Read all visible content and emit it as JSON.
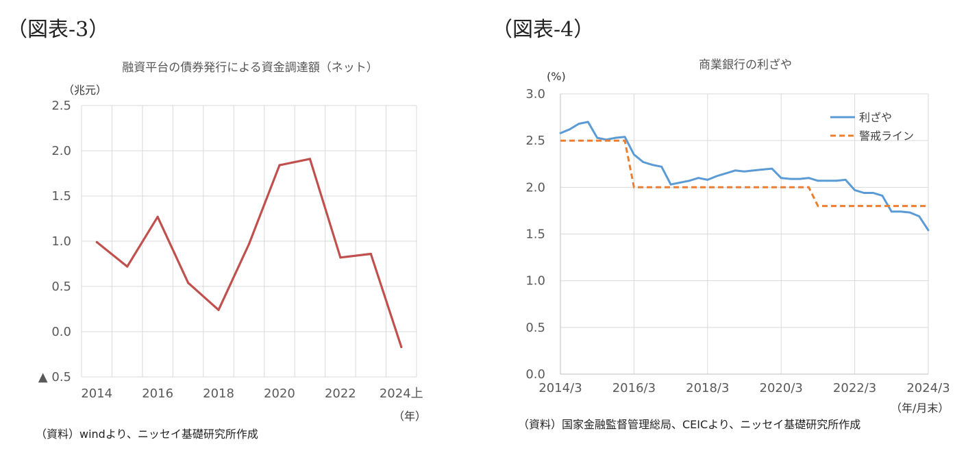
{
  "panels": {
    "left": {
      "heading": "（図表-3）",
      "title": "融資平台の債券発行による資金調達額（ネット）",
      "unit": "（兆元）",
      "x_unit": "（年）",
      "source": "（資料）windより、ニッセイ基礎研究所作成"
    },
    "right": {
      "heading": "（図表-4）",
      "title": "商業銀行の利ざや",
      "unit": "(%)",
      "x_unit": "（年/月末）",
      "source": "（資料）国家金融監督管理総局、CEICより、ニッセイ基礎研究所作成"
    }
  },
  "chart_data": [
    {
      "type": "line",
      "title": "融資平台の債券発行による資金調達額（ネット）",
      "ylabel": "（兆元）",
      "xlabel": "（年）",
      "ylim": [
        -0.5,
        2.5
      ],
      "y_ticks": [
        2.5,
        2.0,
        1.5,
        1.0,
        0.5,
        0.0,
        -0.5
      ],
      "y_tick_labels": [
        "2.5",
        "2.0",
        "1.5",
        "1.0",
        "0.5",
        "0.0",
        "▲ 0.5"
      ],
      "x_tick_labels": [
        "2014",
        "2016",
        "2018",
        "2020",
        "2022",
        "2024上"
      ],
      "grid": true,
      "color": "#c0504d",
      "categories": [
        "2014",
        "2015",
        "2016",
        "2017",
        "2018",
        "2019",
        "2020",
        "2021",
        "2022",
        "2023",
        "2024上"
      ],
      "series": [
        {
          "values": [
            0.99,
            0.72,
            1.27,
            0.54,
            0.24,
            0.97,
            1.84,
            1.91,
            0.82,
            0.86,
            -0.17
          ]
        }
      ]
    },
    {
      "type": "line",
      "title": "商業銀行の利ざや",
      "ylabel": "(%)",
      "xlabel": "（年/月末）",
      "ylim": [
        0.0,
        3.0
      ],
      "y_ticks": [
        3.0,
        2.5,
        2.0,
        1.5,
        1.0,
        0.5,
        0.0
      ],
      "y_tick_labels": [
        "3.0",
        "2.5",
        "2.0",
        "1.5",
        "1.0",
        "0.5",
        "0.0"
      ],
      "x_tick_labels": [
        "2014/3",
        "2016/3",
        "2018/3",
        "2020/3",
        "2022/3",
        "2024/3"
      ],
      "grid": true,
      "legend": "top-right",
      "series": [
        {
          "name": "利ざや",
          "color": "#5b9bd5",
          "style": "solid",
          "points": [
            [
              "2014/3",
              2.58
            ],
            [
              "2014/6",
              2.62
            ],
            [
              "2014/9",
              2.68
            ],
            [
              "2014/12",
              2.7
            ],
            [
              "2015/3",
              2.53
            ],
            [
              "2015/6",
              2.51
            ],
            [
              "2015/9",
              2.53
            ],
            [
              "2015/12",
              2.54
            ],
            [
              "2016/3",
              2.35
            ],
            [
              "2016/6",
              2.27
            ],
            [
              "2016/9",
              2.24
            ],
            [
              "2016/12",
              2.22
            ],
            [
              "2017/3",
              2.03
            ],
            [
              "2017/6",
              2.05
            ],
            [
              "2017/9",
              2.07
            ],
            [
              "2017/12",
              2.1
            ],
            [
              "2018/3",
              2.08
            ],
            [
              "2018/6",
              2.12
            ],
            [
              "2018/9",
              2.15
            ],
            [
              "2018/12",
              2.18
            ],
            [
              "2019/3",
              2.17
            ],
            [
              "2019/6",
              2.18
            ],
            [
              "2019/9",
              2.19
            ],
            [
              "2019/12",
              2.2
            ],
            [
              "2020/3",
              2.1
            ],
            [
              "2020/6",
              2.09
            ],
            [
              "2020/9",
              2.09
            ],
            [
              "2020/12",
              2.1
            ],
            [
              "2021/3",
              2.07
            ],
            [
              "2021/6",
              2.07
            ],
            [
              "2021/9",
              2.07
            ],
            [
              "2021/12",
              2.08
            ],
            [
              "2022/3",
              1.97
            ],
            [
              "2022/6",
              1.94
            ],
            [
              "2022/9",
              1.94
            ],
            [
              "2022/12",
              1.91
            ],
            [
              "2023/3",
              1.74
            ],
            [
              "2023/6",
              1.74
            ],
            [
              "2023/9",
              1.73
            ],
            [
              "2023/12",
              1.69
            ],
            [
              "2024/3",
              1.54
            ]
          ]
        },
        {
          "name": "警戒ライン",
          "color": "#ed7d31",
          "style": "dashed",
          "points": [
            [
              "2014/3",
              2.5
            ],
            [
              "2015/12",
              2.5
            ],
            [
              "2016/3",
              2.0
            ],
            [
              "2020/12",
              2.0
            ],
            [
              "2021/3",
              1.8
            ],
            [
              "2024/3",
              1.8
            ]
          ]
        }
      ]
    }
  ]
}
